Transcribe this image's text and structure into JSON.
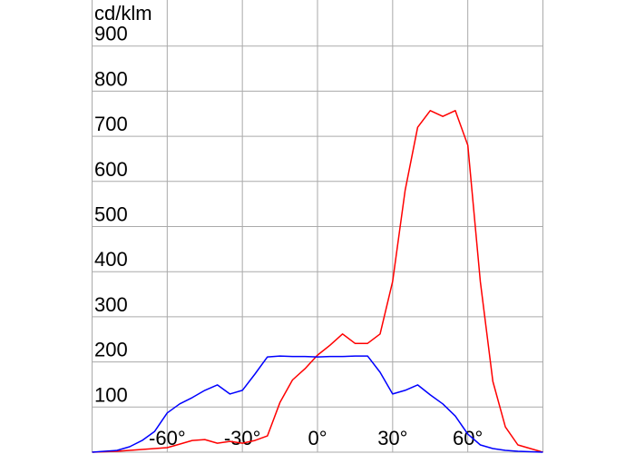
{
  "chart_data": {
    "type": "line",
    "y_label": "cd/klm",
    "x": [
      -90,
      -85,
      -80,
      -75,
      -70,
      -65,
      -60,
      -55,
      -50,
      -45,
      -40,
      -35,
      -30,
      -25,
      -20,
      -15,
      -10,
      -5,
      0,
      5,
      10,
      15,
      20,
      25,
      30,
      35,
      40,
      45,
      50,
      55,
      60,
      65,
      70,
      75,
      80,
      85,
      90
    ],
    "series": [
      {
        "color": "#ff0000",
        "values": [
          0,
          1,
          2,
          4,
          6,
          8,
          10,
          18,
          26,
          28,
          20,
          24,
          20,
          26,
          36,
          110,
          160,
          185,
          215,
          237,
          262,
          241,
          241,
          262,
          378,
          580,
          720,
          757,
          744,
          757,
          680,
          378,
          157,
          56,
          16,
          8,
          0
        ]
      },
      {
        "color": "#0000ff",
        "values": [
          0,
          2,
          4,
          12,
          26,
          46,
          87,
          107,
          121,
          137,
          149,
          129,
          137,
          173,
          211,
          213,
          212,
          212,
          211,
          212,
          212,
          213,
          213,
          177,
          129,
          137,
          149,
          127,
          107,
          80,
          40,
          16,
          8,
          4,
          2,
          1,
          0
        ]
      }
    ],
    "xlim": [
      -90,
      90
    ],
    "xticks": [
      {
        "value": -60,
        "label": "-60°"
      },
      {
        "value": -30,
        "label": "-30°"
      },
      {
        "value": 0,
        "label": "0°"
      },
      {
        "value": 30,
        "label": "30°"
      },
      {
        "value": 60,
        "label": "60°"
      }
    ],
    "ylim": [
      0,
      1000
    ],
    "yticks": [
      100,
      200,
      300,
      400,
      500,
      600,
      700,
      800,
      900
    ],
    "grid": true
  }
}
